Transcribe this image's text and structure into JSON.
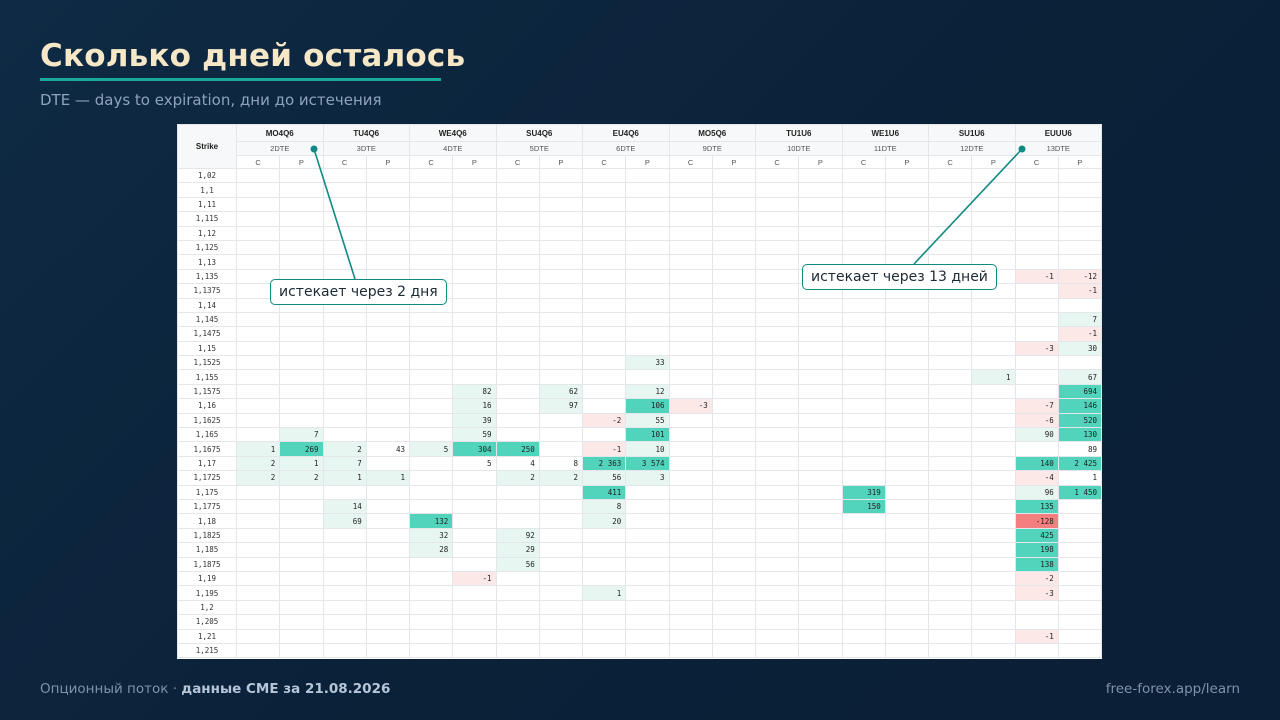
{
  "header": {
    "title": "Сколько дней осталось",
    "subtitle": "DTE — days to expiration, дни до истечения"
  },
  "table": {
    "strike_label": "Strike",
    "call_label": "C",
    "put_label": "P",
    "expirations": [
      {
        "code": "MO4Q6",
        "dte": "2DTE"
      },
      {
        "code": "TU4Q6",
        "dte": "3DTE"
      },
      {
        "code": "WE4Q6",
        "dte": "4DTE"
      },
      {
        "code": "SU4Q6",
        "dte": "5DTE"
      },
      {
        "code": "EU4Q6",
        "dte": "6DTE"
      },
      {
        "code": "MO5Q6",
        "dte": "9DTE"
      },
      {
        "code": "TU1U6",
        "dte": "10DTE"
      },
      {
        "code": "WE1U6",
        "dte": "11DTE"
      },
      {
        "code": "SU1U6",
        "dte": "12DTE"
      },
      {
        "code": "EUUU6",
        "dte": "13DTE"
      }
    ],
    "rows": [
      {
        "strike": "1,02",
        "cells": []
      },
      {
        "strike": "1,1",
        "cells": []
      },
      {
        "strike": "1,11",
        "cells": []
      },
      {
        "strike": "1,115",
        "cells": []
      },
      {
        "strike": "1,12",
        "cells": []
      },
      {
        "strike": "1,125",
        "cells": []
      },
      {
        "strike": "1,13",
        "cells": []
      },
      {
        "strike": "1,135",
        "cells": [
          [
            18,
            "-1",
            "neg1"
          ],
          [
            19,
            "-12",
            "neg1"
          ]
        ]
      },
      {
        "strike": "1,1375",
        "cells": [
          [
            19,
            "-1",
            "neg1"
          ]
        ]
      },
      {
        "strike": "1,14",
        "cells": []
      },
      {
        "strike": "1,145",
        "cells": [
          [
            19,
            "7",
            "pos1"
          ]
        ]
      },
      {
        "strike": "1,1475",
        "cells": [
          [
            19,
            "-1",
            "neg1"
          ]
        ]
      },
      {
        "strike": "1,15",
        "cells": [
          [
            18,
            "-3",
            "neg1"
          ],
          [
            19,
            "30",
            "pos1"
          ]
        ]
      },
      {
        "strike": "1,1525",
        "cells": [
          [
            9,
            "33",
            "pos1"
          ]
        ]
      },
      {
        "strike": "1,155",
        "cells": [
          [
            17,
            "1",
            "pos1"
          ],
          [
            19,
            "67",
            "pos1"
          ]
        ]
      },
      {
        "strike": "1,1575",
        "cells": [
          [
            5,
            "82",
            "pos1"
          ],
          [
            7,
            "62",
            "pos1"
          ],
          [
            9,
            "12",
            "pos1"
          ],
          [
            19,
            "694",
            "pos3"
          ]
        ]
      },
      {
        "strike": "1,16",
        "cells": [
          [
            5,
            "16",
            "pos1"
          ],
          [
            7,
            "97",
            "pos1"
          ],
          [
            9,
            "106",
            "pos3"
          ],
          [
            10,
            "-3",
            "neg1"
          ],
          [
            18,
            "-7",
            "neg1"
          ],
          [
            19,
            "146",
            "pos3"
          ]
        ]
      },
      {
        "strike": "1,1625",
        "cells": [
          [
            5,
            "39",
            "pos1"
          ],
          [
            8,
            "-2",
            "neg1"
          ],
          [
            9,
            "55",
            "pos1"
          ],
          [
            18,
            "-6",
            "neg1"
          ],
          [
            19,
            "520",
            "pos3"
          ]
        ]
      },
      {
        "strike": "1,165",
        "cells": [
          [
            1,
            "7",
            "pos1"
          ],
          [
            5,
            "59",
            "pos1"
          ],
          [
            9,
            "101",
            "pos3"
          ],
          [
            18,
            "90",
            "pos1"
          ],
          [
            19,
            "130",
            "pos3"
          ]
        ]
      },
      {
        "strike": "1,1675",
        "cells": [
          [
            0,
            "1",
            "pos1"
          ],
          [
            1,
            "269",
            "pos3"
          ],
          [
            2,
            "2",
            "pos1"
          ],
          [
            3,
            "43",
            ""
          ],
          [
            4,
            "5",
            "pos1"
          ],
          [
            5,
            "304",
            "pos3"
          ],
          [
            6,
            "250",
            "pos3"
          ],
          [
            8,
            "-1",
            "neg1"
          ],
          [
            9,
            "10",
            "pos1"
          ],
          [
            19,
            "89",
            ""
          ]
        ]
      },
      {
        "strike": "1,17",
        "cells": [
          [
            0,
            "2",
            "pos1"
          ],
          [
            1,
            "1",
            "pos1"
          ],
          [
            2,
            "7",
            "pos1"
          ],
          [
            5,
            "5",
            ""
          ],
          [
            6,
            "4",
            ""
          ],
          [
            7,
            "8",
            ""
          ],
          [
            8,
            "2 363",
            "pos3"
          ],
          [
            9,
            "3 574",
            "pos3"
          ],
          [
            18,
            "140",
            "pos3"
          ],
          [
            19,
            "2 425",
            "pos3"
          ]
        ]
      },
      {
        "strike": "1,1725",
        "cells": [
          [
            0,
            "2",
            "pos1"
          ],
          [
            1,
            "2",
            "pos1"
          ],
          [
            2,
            "1",
            "pos1"
          ],
          [
            3,
            "1",
            "pos1"
          ],
          [
            6,
            "2",
            "pos1"
          ],
          [
            7,
            "2",
            "pos1"
          ],
          [
            8,
            "56",
            "pos1"
          ],
          [
            9,
            "3",
            "pos1"
          ],
          [
            18,
            "-4",
            "neg1"
          ],
          [
            19,
            "1",
            ""
          ]
        ]
      },
      {
        "strike": "1,175",
        "cells": [
          [
            8,
            "411",
            "pos3"
          ],
          [
            14,
            "319",
            "pos3"
          ],
          [
            18,
            "96",
            "pos1"
          ],
          [
            19,
            "1 450",
            "pos3"
          ]
        ]
      },
      {
        "strike": "1,1775",
        "cells": [
          [
            2,
            "14",
            "pos1"
          ],
          [
            8,
            "8",
            "pos1"
          ],
          [
            14,
            "150",
            "pos3"
          ],
          [
            18,
            "135",
            "pos3"
          ]
        ]
      },
      {
        "strike": "1,18",
        "cells": [
          [
            2,
            "69",
            "pos1"
          ],
          [
            4,
            "132",
            "pos3"
          ],
          [
            8,
            "20",
            "pos1"
          ],
          [
            18,
            "-128",
            "neg3"
          ]
        ]
      },
      {
        "strike": "1,1825",
        "cells": [
          [
            4,
            "32",
            "pos1"
          ],
          [
            6,
            "92",
            "pos1"
          ],
          [
            18,
            "425",
            "pos3"
          ]
        ]
      },
      {
        "strike": "1,185",
        "cells": [
          [
            4,
            "28",
            "pos1"
          ],
          [
            6,
            "29",
            "pos1"
          ],
          [
            18,
            "198",
            "pos3"
          ]
        ]
      },
      {
        "strike": "1,1875",
        "cells": [
          [
            6,
            "56",
            "pos1"
          ],
          [
            18,
            "138",
            "pos3"
          ]
        ]
      },
      {
        "strike": "1,19",
        "cells": [
          [
            5,
            "-1",
            "neg1"
          ],
          [
            18,
            "-2",
            "neg1"
          ]
        ]
      },
      {
        "strike": "1,195",
        "cells": [
          [
            8,
            "1",
            "pos1"
          ],
          [
            18,
            "-3",
            "neg1"
          ]
        ]
      },
      {
        "strike": "1,2",
        "cells": []
      },
      {
        "strike": "1,205",
        "cells": []
      },
      {
        "strike": "1,21",
        "cells": [
          [
            18,
            "-1",
            "neg1"
          ]
        ]
      },
      {
        "strike": "1,215",
        "cells": []
      }
    ]
  },
  "callouts": {
    "left": "истекает через 2 дня",
    "right": "истекает через 13 дней"
  },
  "footer": {
    "source_prefix": "Опционный поток · ",
    "source_bold": "данные CME за 21.08.2026",
    "site": "free-forex.app/learn"
  },
  "colors": {
    "accent": "#1aa89a",
    "title": "#f6e7c6",
    "positive_strong": "#52d3bc",
    "positive_light": "#e8f6f1",
    "negative_strong": "#f47f7f",
    "negative_light": "#fde8e8",
    "callout_border": "#128a84"
  }
}
